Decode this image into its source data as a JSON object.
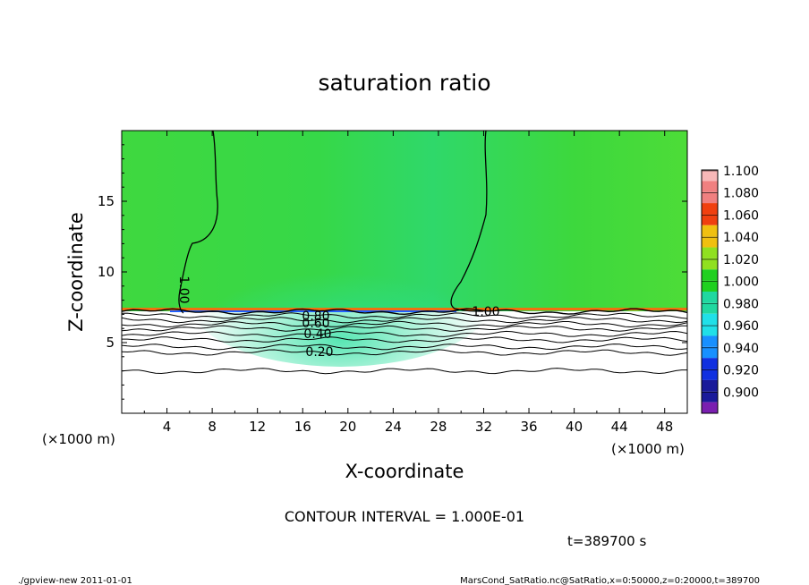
{
  "chart_data": {
    "type": "heatmap",
    "title": "saturation ratio",
    "xlabel": "X-coordinate",
    "ylabel": "Z-coordinate",
    "x_units_left": "(×1000 m)",
    "x_units_right": "(×1000 m)",
    "xlim": [
      0,
      50
    ],
    "ylim": [
      0,
      20
    ],
    "xticks": [
      4,
      8,
      12,
      16,
      20,
      24,
      28,
      32,
      36,
      40,
      44,
      48
    ],
    "yticks": [
      5,
      10,
      15
    ],
    "colorbar": {
      "levels": [
        "0.900",
        "0.920",
        "0.940",
        "0.960",
        "0.980",
        "1.000",
        "1.020",
        "1.040",
        "1.060",
        "1.080",
        "1.100"
      ],
      "colors": [
        "#7a1fb0",
        "#1a1a9a",
        "#1030e0",
        "#1890ff",
        "#20e0e8",
        "#20d8a0",
        "#20d020",
        "#90e020",
        "#f0c010",
        "#f04010",
        "#f08080",
        "#f8b8b8"
      ]
    },
    "contour_labels": [
      "1.00",
      "1.00",
      "0.80",
      "0.60",
      "0.40",
      "0.20"
    ],
    "contour_interval": "CONTOUR INTERVAL = 1.000E-01",
    "time": "t=389700 s",
    "footer_left": "./gpview-new  2011-01-01",
    "footer_right": "MarsCond_SatRatio.nc@SatRatio,x=0:50000,z=0:20000,t=389700"
  }
}
